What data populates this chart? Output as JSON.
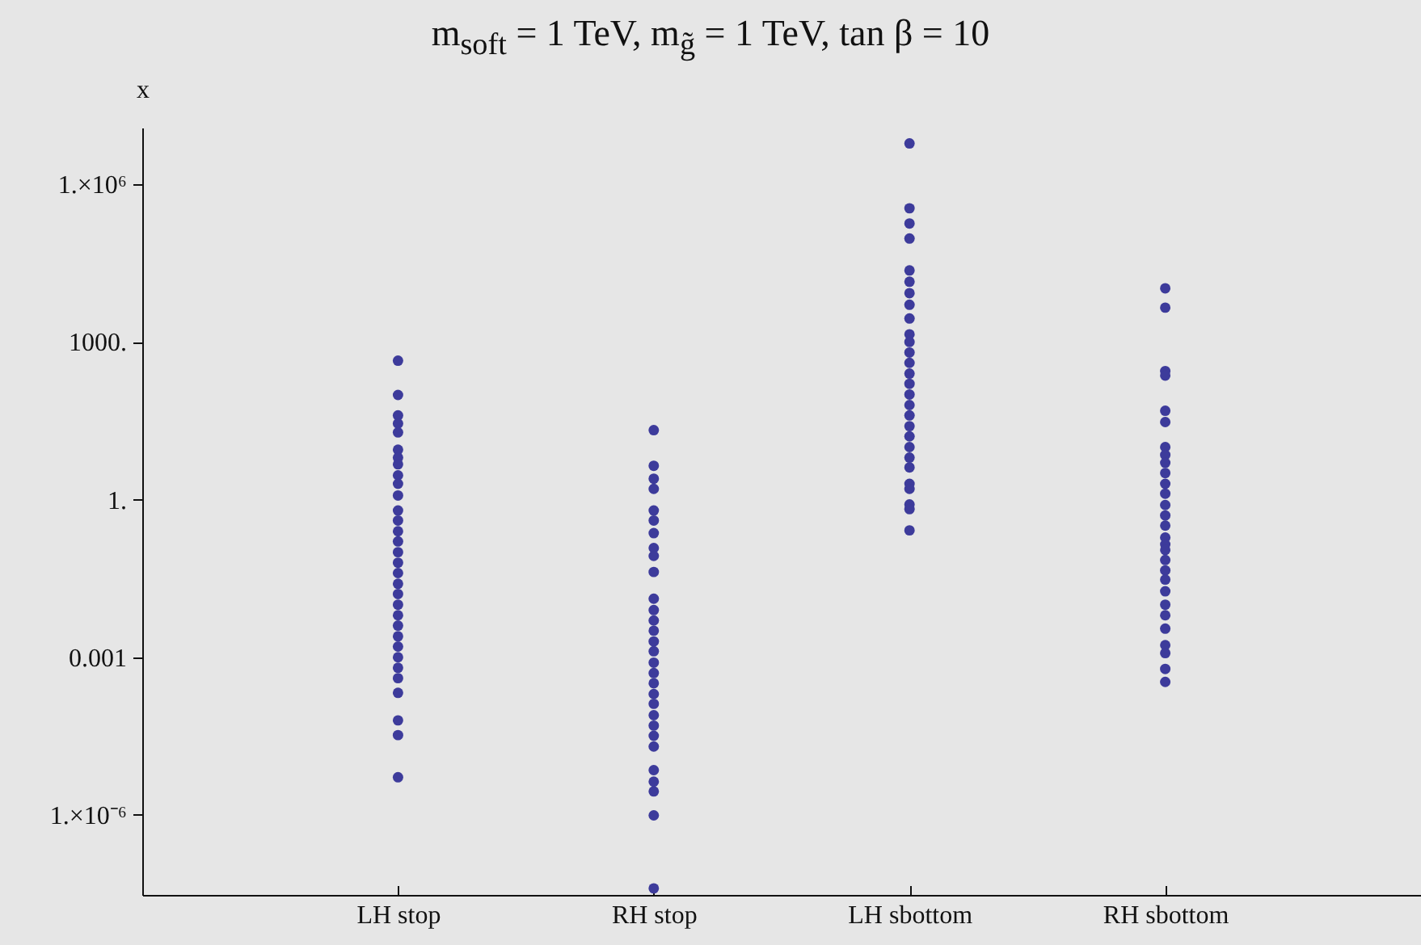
{
  "chart_data": {
    "type": "scatter",
    "title": "m$_{soft}$ = 1 TeV, m$_{g̃}$ = 1 TeV, tan β = 10",
    "ylabel": "x",
    "categories": [
      "LH stop",
      "RH stop",
      "LH sbottom",
      "RH sbottom"
    ],
    "log": "y",
    "marker": "circle",
    "ylim": [
      3e-08,
      12000000
    ],
    "yticks": [
      {
        "value": 1e-06,
        "label": "1.×10⁻⁶"
      },
      0.001,
      {
        "value": 1,
        "label": "1."
      },
      {
        "value": 1000,
        "label": "1000."
      },
      {
        "value": 1000000,
        "label": "1.×10⁶"
      }
    ],
    "series": [
      {
        "color": "#3d3b9b",
        "x": [
          "LH stop",
          "LH stop",
          "LH stop",
          "LH stop",
          "LH stop",
          "LH stop",
          "LH stop",
          "LH stop",
          "LH stop",
          "LH stop",
          "LH stop",
          "LH stop",
          "LH stop",
          "LH stop",
          "LH stop",
          "LH stop",
          "LH stop",
          "LH stop",
          "LH stop",
          "LH stop",
          "LH stop",
          "LH stop",
          "LH stop",
          "LH stop",
          "LH stop",
          "LH stop",
          "LH stop",
          "LH stop",
          "LH stop",
          "LH stop",
          "LH stop",
          "LH stop"
        ],
        "values": [
          440,
          98,
          40,
          28,
          19,
          8.9,
          6.3,
          4.7,
          2.9,
          2.0,
          1.2,
          0.62,
          0.4,
          0.25,
          0.16,
          0.1,
          0.063,
          0.04,
          0.025,
          0.016,
          0.01,
          0.0063,
          0.004,
          0.0025,
          0.0016,
          0.001,
          0.00063,
          0.0004,
          0.00021,
          6.3e-05,
          3.3e-05,
          5.2e-06
        ]
      },
      {
        "color": "#3d3b9b",
        "x": [
          "RH stop",
          "RH stop",
          "RH stop",
          "RH stop",
          "RH stop",
          "RH stop",
          "RH stop",
          "RH stop",
          "RH stop",
          "RH stop",
          "RH stop",
          "RH stop",
          "RH stop",
          "RH stop",
          "RH stop",
          "RH stop",
          "RH stop",
          "RH stop",
          "RH stop",
          "RH stop",
          "RH stop",
          "RH stop",
          "RH stop",
          "RH stop",
          "RH stop",
          "RH stop",
          "RH stop",
          "RH stop",
          "RH stop",
          "RH stop"
        ],
        "values": [
          21,
          4.4,
          2.5,
          1.6,
          0.62,
          0.4,
          0.23,
          0.12,
          0.085,
          0.042,
          0.013,
          0.0079,
          0.005,
          0.0032,
          0.002,
          0.0013,
          0.00079,
          0.0005,
          0.00032,
          0.0002,
          0.00013,
          7.9e-05,
          5e-05,
          3.2e-05,
          2e-05,
          7.1e-06,
          4.3e-06,
          2.8e-06,
          9.8e-07,
          4e-08
        ]
      },
      {
        "color": "#3d3b9b",
        "x": [
          "LH sbottom",
          "LH sbottom",
          "LH sbottom",
          "LH sbottom",
          "LH sbottom",
          "LH sbottom",
          "LH sbottom",
          "LH sbottom",
          "LH sbottom",
          "LH sbottom",
          "LH sbottom",
          "LH sbottom",
          "LH sbottom",
          "LH sbottom",
          "LH sbottom",
          "LH sbottom",
          "LH sbottom",
          "LH sbottom",
          "LH sbottom",
          "LH sbottom",
          "LH sbottom",
          "LH sbottom",
          "LH sbottom",
          "LH sbottom",
          "LH sbottom",
          "LH sbottom",
          "LH sbottom",
          "LH sbottom"
        ],
        "values": [
          6000000,
          350000,
          180000,
          93000,
          23000,
          14000,
          8500,
          5100,
          2800,
          1400,
          1000,
          630,
          400,
          250,
          160,
          100,
          63,
          40,
          25,
          16,
          10,
          6.3,
          4.1,
          2.0,
          1.6,
          0.81,
          0.66,
          0.26
        ]
      },
      {
        "color": "#3d3b9b",
        "x": [
          "RH sbottom",
          "RH sbottom",
          "RH sbottom",
          "RH sbottom",
          "RH sbottom",
          "RH sbottom",
          "RH sbottom",
          "RH sbottom",
          "RH sbottom",
          "RH sbottom",
          "RH sbottom",
          "RH sbottom",
          "RH sbottom",
          "RH sbottom",
          "RH sbottom",
          "RH sbottom",
          "RH sbottom",
          "RH sbottom",
          "RH sbottom",
          "RH sbottom",
          "RH sbottom",
          "RH sbottom",
          "RH sbottom",
          "RH sbottom",
          "RH sbottom",
          "RH sbottom",
          "RH sbottom",
          "RH sbottom",
          "RH sbottom"
        ],
        "values": [
          10500,
          4500,
          280,
          230,
          49,
          30,
          10,
          7.1,
          5.0,
          3.2,
          2.0,
          1.3,
          0.79,
          0.5,
          0.32,
          0.19,
          0.14,
          0.11,
          0.071,
          0.045,
          0.03,
          0.018,
          0.01,
          0.0063,
          0.0035,
          0.0017,
          0.0012,
          0.0006,
          0.00034
        ]
      }
    ]
  }
}
